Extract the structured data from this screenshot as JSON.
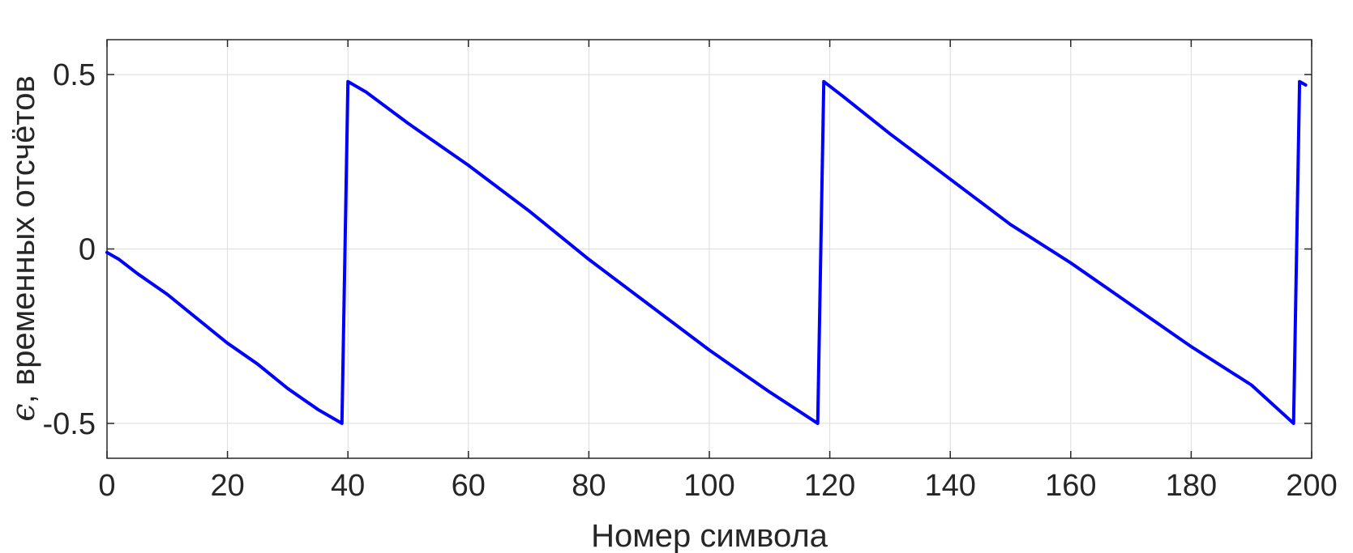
{
  "chart_data": {
    "type": "line",
    "xlabel": "Номер символа",
    "ylabel_symbol": "ϵ",
    "ylabel_text": ", временных отсчётов",
    "xlim": [
      0,
      200
    ],
    "ylim": [
      -0.6,
      0.6
    ],
    "xticks": [
      0,
      20,
      40,
      60,
      80,
      100,
      120,
      140,
      160,
      180,
      200
    ],
    "xtick_labels": [
      "0",
      "20",
      "40",
      "60",
      "80",
      "100",
      "120",
      "140",
      "160",
      "180",
      "200"
    ],
    "yticks": [
      -0.5,
      0,
      0.5
    ],
    "ytick_labels": [
      "-0.5",
      "0",
      "0.5"
    ],
    "grid": true,
    "series": [
      {
        "color": "#0000ff",
        "x": [
          0,
          1,
          2,
          5,
          10,
          15,
          20,
          25,
          30,
          35,
          39,
          40,
          43,
          50,
          60,
          70,
          80,
          90,
          100,
          110,
          118,
          119,
          122,
          130,
          140,
          150,
          160,
          170,
          180,
          190,
          197,
          198,
          199
        ],
        "y": [
          -0.01,
          -0.02,
          -0.03,
          -0.07,
          -0.13,
          -0.2,
          -0.27,
          -0.33,
          -0.4,
          -0.46,
          -0.5,
          0.48,
          0.45,
          0.36,
          0.24,
          0.11,
          -0.03,
          -0.16,
          -0.29,
          -0.41,
          -0.5,
          0.48,
          0.44,
          0.33,
          0.2,
          0.07,
          -0.04,
          -0.16,
          -0.28,
          -0.39,
          -0.5,
          0.48,
          0.47
        ]
      }
    ]
  }
}
